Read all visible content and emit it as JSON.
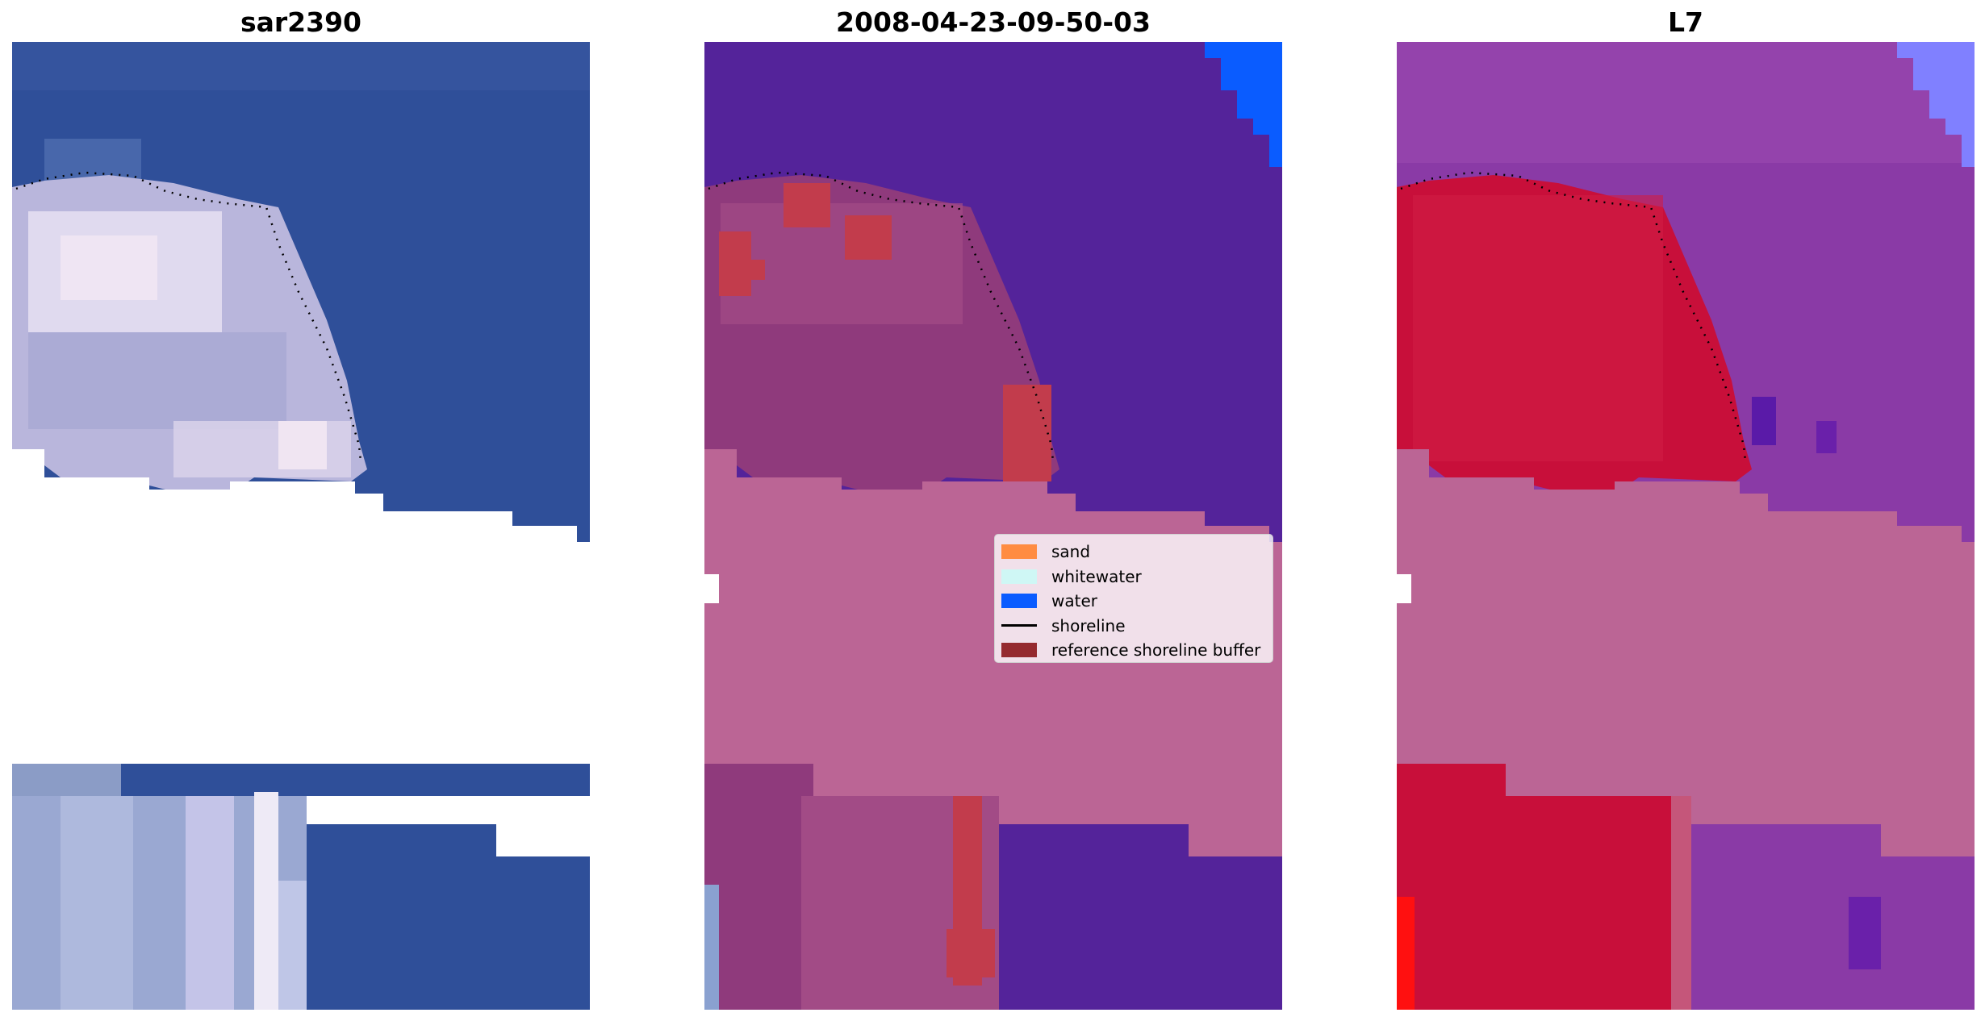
{
  "panels": [
    {
      "title": "sar2390"
    },
    {
      "title": "2008-04-23-09-50-03"
    },
    {
      "title": "L7"
    }
  ],
  "legend": [
    {
      "label": "sand",
      "color": "#ff8c42",
      "kind": "patch"
    },
    {
      "label": "whitewater",
      "color": "#cff7f5",
      "kind": "patch"
    },
    {
      "label": "water",
      "color": "#0a5cff",
      "kind": "patch"
    },
    {
      "label": "shoreline",
      "color": "#000000",
      "kind": "line"
    },
    {
      "label": "reference shoreline buffer",
      "color": "#952a2f",
      "kind": "patch"
    }
  ],
  "colors": {
    "rgb_water": "#2f4f99",
    "rgb_land": "#c9c6e3",
    "class_water": "#54239a",
    "class_buffer_overlay": "#bb6595",
    "class_sand_highlight": "#c23c4c",
    "class_water_corner": "#0a5cff",
    "ndwi_water": "#8a3aa6",
    "ndwi_land": "#c80f3a",
    "ndwi_corner": "#8080ff",
    "ndwi_buffer_overlay": "#bb6595",
    "no_data": "#ffffff"
  }
}
